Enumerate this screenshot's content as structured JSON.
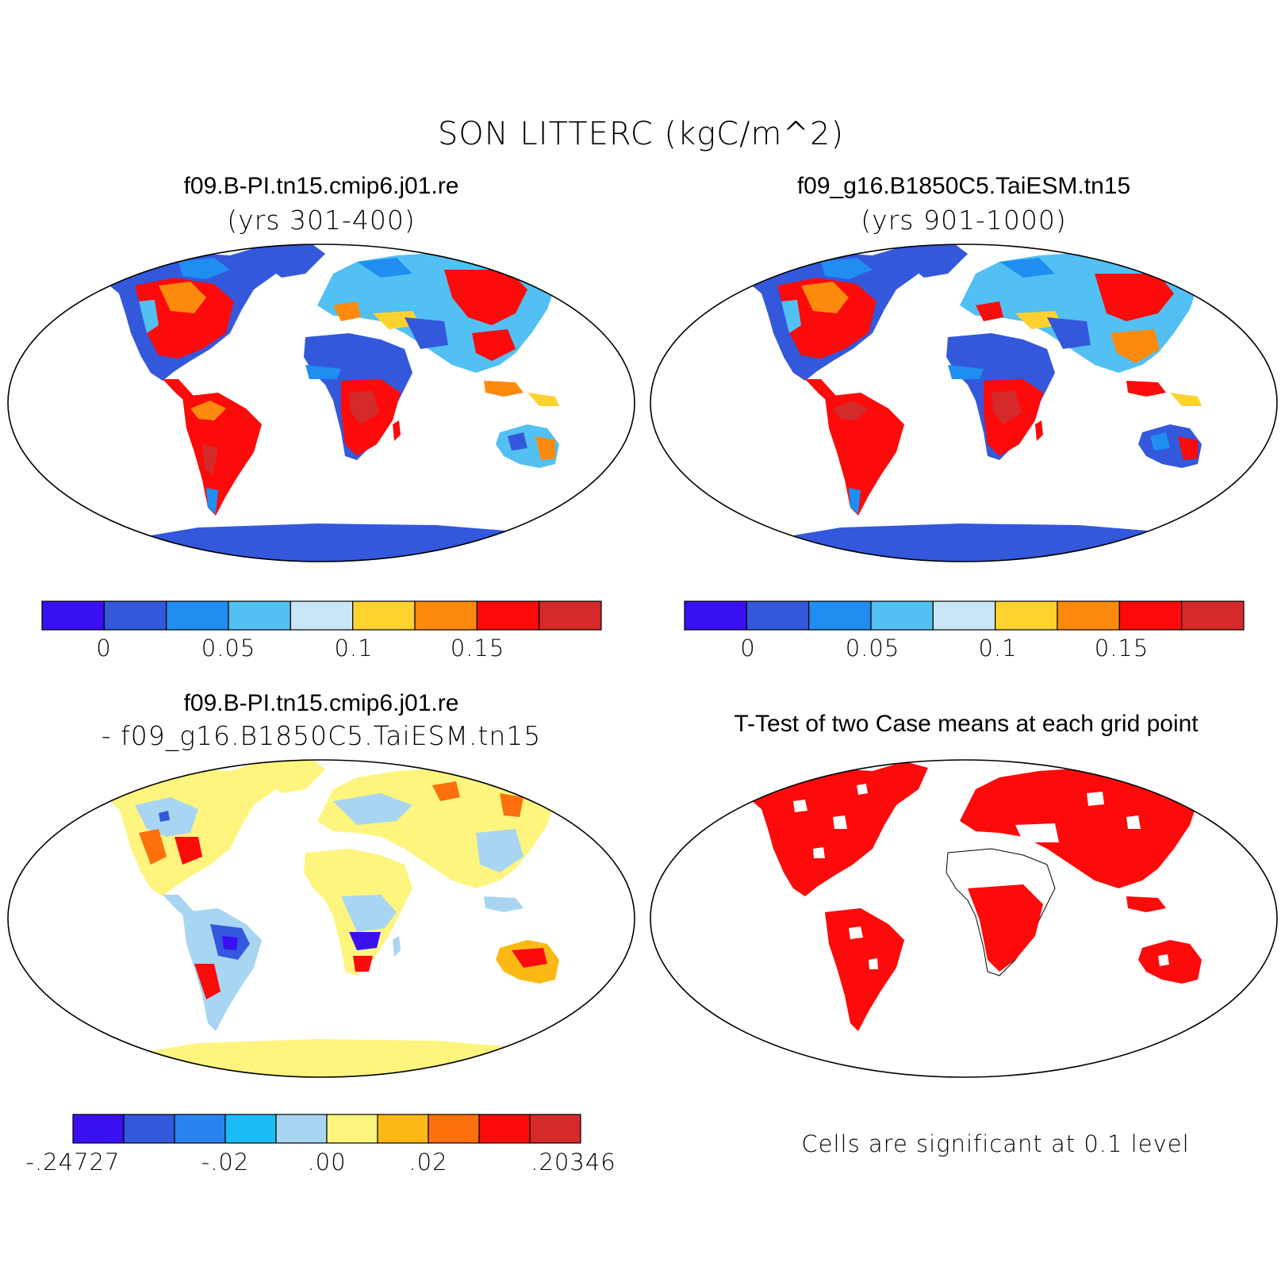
{
  "main_title": "SON LITTERC (kgC/m^2)",
  "panels": {
    "top_left": {
      "title": "f09.B-PI.tn15.cmip6.j01.re",
      "subtitle": "(yrs 301-400)"
    },
    "top_right": {
      "title": "f09_g16.B1850C5.TaiESM.tn15",
      "subtitle": "(yrs 901-1000)"
    },
    "bottom_left": {
      "title": "f09.B-PI.tn15.cmip6.j01.re",
      "subtitle": "- f09_g16.B1850C5.TaiESM.tn15"
    },
    "bottom_right": {
      "title": "T-Test of two Case means at each grid point",
      "note": "Cells are significant at 0.1 level"
    }
  },
  "colorbars": {
    "case": {
      "colors": [
        "#3a10f2",
        "#3358dc",
        "#1f8ef0",
        "#52c0f2",
        "#c9e6f8",
        "#fdd22e",
        "#fd8a0c",
        "#fd0a0a",
        "#d42a2a"
      ],
      "labels": [
        "0",
        "0.05",
        "0.1",
        "0.15"
      ]
    },
    "diff": {
      "colors": [
        "#3a10f2",
        "#3358dc",
        "#2a82ee",
        "#1bbcf6",
        "#a8d6f2",
        "#fdf57e",
        "#fcb914",
        "#fd700c",
        "#fd0a0a",
        "#d42a2a"
      ],
      "labels": [
        ".24727",
        "-.02",
        ".00",
        ".02",
        ".20346"
      ],
      "labels_prefix": [
        "-",
        "",
        "",
        "",
        ""
      ]
    }
  },
  "map_colors": {
    "ocean": "#ffffff",
    "significance": "#fd0a0a",
    "coast": "#000000"
  }
}
